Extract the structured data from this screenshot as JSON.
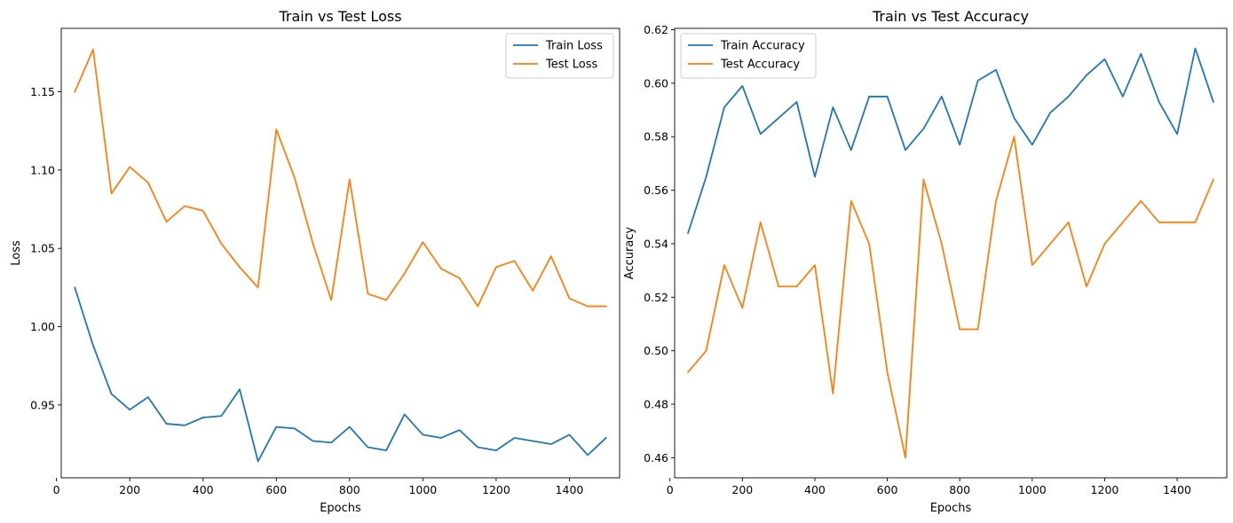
{
  "chart_data": [
    {
      "type": "line",
      "title": "Train vs Test Loss",
      "xlabel": "Epochs",
      "ylabel": "Loss",
      "xlim": [
        13,
        1537
      ],
      "ylim": [
        0.9035,
        1.1905
      ],
      "xticks": [
        0,
        200,
        400,
        600,
        800,
        1000,
        1200,
        1400
      ],
      "yticks": [
        0.95,
        1.0,
        1.05,
        1.1,
        1.15
      ],
      "ytick_labels": [
        "0.95",
        "1.00",
        "1.05",
        "1.10",
        "1.15"
      ],
      "grid": false,
      "legend_position": "upper right",
      "x": [
        50,
        100,
        150,
        200,
        250,
        300,
        350,
        400,
        450,
        500,
        550,
        600,
        650,
        700,
        750,
        800,
        850,
        900,
        950,
        1000,
        1050,
        1100,
        1150,
        1200,
        1250,
        1300,
        1350,
        1400,
        1450,
        1500
      ],
      "series": [
        {
          "name": "Train Loss",
          "color": "#1f77b4",
          "values": [
            1.025,
            0.988,
            0.957,
            0.947,
            0.955,
            0.938,
            0.937,
            0.942,
            0.943,
            0.96,
            0.914,
            0.936,
            0.935,
            0.927,
            0.926,
            0.936,
            0.923,
            0.921,
            0.944,
            0.931,
            0.929,
            0.934,
            0.923,
            0.921,
            0.929,
            0.927,
            0.925,
            0.931,
            0.918,
            0.929
          ]
        },
        {
          "name": "Test Loss",
          "color": "#ff7f0e",
          "values": [
            1.15,
            1.177,
            1.085,
            1.102,
            1.092,
            1.067,
            1.077,
            1.074,
            1.053,
            1.038,
            1.025,
            1.126,
            1.095,
            1.053,
            1.017,
            1.094,
            1.021,
            1.017,
            1.034,
            1.054,
            1.037,
            1.031,
            1.013,
            1.038,
            1.042,
            1.023,
            1.045,
            1.018,
            1.013,
            1.013
          ]
        }
      ]
    },
    {
      "type": "line",
      "title": "Train vs Test Accuracy",
      "xlabel": "Epochs",
      "ylabel": "Accuracy",
      "xlim": [
        13,
        1537
      ],
      "ylim": [
        0.4525,
        0.6205
      ],
      "xticks": [
        0,
        200,
        400,
        600,
        800,
        1000,
        1200,
        1400
      ],
      "yticks": [
        0.46,
        0.48,
        0.5,
        0.52,
        0.54,
        0.56,
        0.58,
        0.6,
        0.62
      ],
      "ytick_labels": [
        "0.46",
        "0.48",
        "0.50",
        "0.52",
        "0.54",
        "0.56",
        "0.58",
        "0.60",
        "0.62"
      ],
      "grid": false,
      "legend_position": "upper left",
      "x": [
        50,
        100,
        150,
        200,
        250,
        300,
        350,
        400,
        450,
        500,
        550,
        600,
        650,
        700,
        750,
        800,
        850,
        900,
        950,
        1000,
        1050,
        1100,
        1150,
        1200,
        1250,
        1300,
        1350,
        1400,
        1450,
        1500
      ],
      "series": [
        {
          "name": "Train Accuracy",
          "color": "#1f77b4",
          "values": [
            0.544,
            0.565,
            0.591,
            0.599,
            0.581,
            0.587,
            0.593,
            0.565,
            0.591,
            0.575,
            0.595,
            0.595,
            0.575,
            0.583,
            0.595,
            0.577,
            0.601,
            0.605,
            0.587,
            0.577,
            0.589,
            0.595,
            0.603,
            0.609,
            0.595,
            0.611,
            0.593,
            0.581,
            0.613,
            0.593
          ]
        },
        {
          "name": "Test Accuracy",
          "color": "#ff7f0e",
          "values": [
            0.492,
            0.5,
            0.532,
            0.516,
            0.548,
            0.524,
            0.524,
            0.532,
            0.484,
            0.556,
            0.54,
            0.492,
            0.46,
            0.564,
            0.54,
            0.508,
            0.508,
            0.556,
            0.58,
            0.532,
            0.54,
            0.548,
            0.524,
            0.54,
            0.548,
            0.556,
            0.548,
            0.548,
            0.548,
            0.564
          ]
        }
      ]
    }
  ]
}
